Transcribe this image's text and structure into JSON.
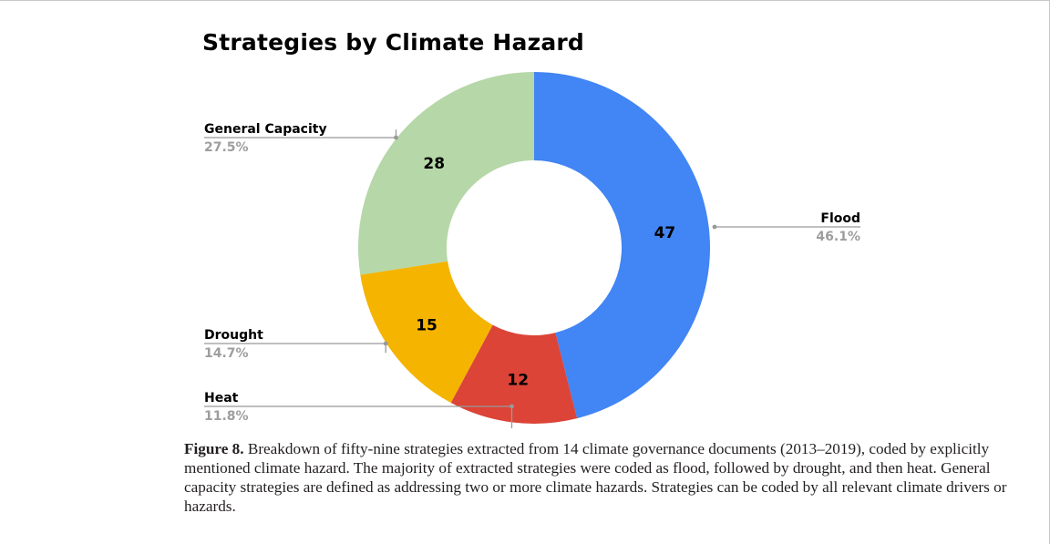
{
  "chart_data": {
    "type": "pie",
    "title": "Strategies by Climate Hazard",
    "donut": true,
    "slices": [
      {
        "label": "Flood",
        "value": 47,
        "percent": "46.1%",
        "color": "#4285f4"
      },
      {
        "label": "Heat",
        "value": 12,
        "percent": "11.8%",
        "color": "#db4437"
      },
      {
        "label": "Drought",
        "value": 15,
        "percent": "14.7%",
        "color": "#f4b400"
      },
      {
        "label": "General Capacity",
        "value": 28,
        "percent": "27.5%",
        "color": "#b6d7a8"
      }
    ]
  },
  "caption": {
    "label": "Figure 8.",
    "text": "Breakdown of fifty-nine strategies extracted from 14 climate governance documents (2013–2019), coded by explicitly mentioned climate hazard. The majority of extracted strategies were coded as flood, followed by drought, and then heat. General capacity strategies are defined as addressing two or more climate hazards. Strategies can be coded by all relevant climate drivers or hazards."
  }
}
